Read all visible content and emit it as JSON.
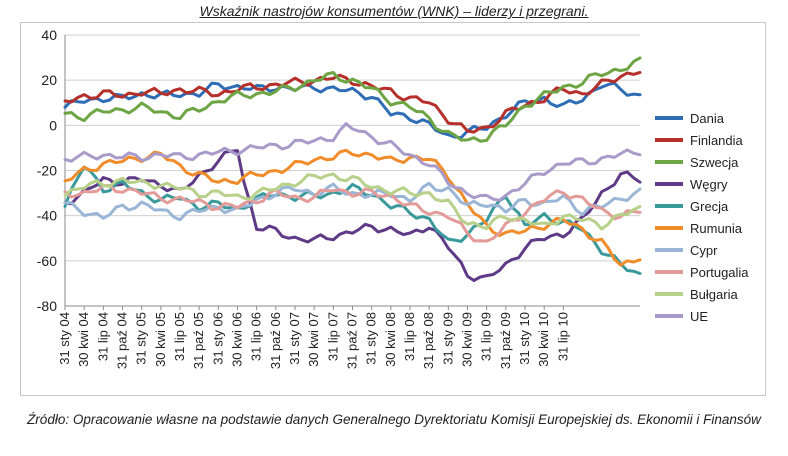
{
  "title": "Wskaźnik nastrojów konsumentów (WNK) – liderzy i przegrani.",
  "source": "Źródło: Opracowanie własne na podstawie danych Generalnego Dyrektoriatu Komisji Europejskiej ds. Ekonomii i Finansów",
  "chart_data": {
    "type": "line",
    "title": "Wskaźnik nastrojów konsumentów (WNK) – liderzy i przegrani.",
    "xlabel": "",
    "ylabel": "",
    "ylim": [
      -80,
      40
    ],
    "yticks": [
      40,
      20,
      0,
      -20,
      -40,
      -60,
      -80
    ],
    "grid": true,
    "legend_position": "right",
    "x_tick_labels": [
      "31 sty 04",
      "30 kwi 04",
      "31 lip 04",
      "31 paź 04",
      "31 sty 05",
      "30 kwi 05",
      "31 lip 05",
      "31 paź 05",
      "31 sty 06",
      "30 kwi 06",
      "31 lip 06",
      "31 paź 06",
      "31 sty 07",
      "30 kwi 07",
      "31 lip 07",
      "31 paź 07",
      "31 sty 08",
      "30 kwi 08",
      "31 lip 08",
      "31 paź 08",
      "31 sty 09",
      "30 kwi 09",
      "31 lip 09",
      "31 paź 09",
      "31 sty 10",
      "30 kwi 10",
      "31 lip 10"
    ],
    "months_per_tick": 3,
    "series": [
      {
        "name": "Dania",
        "color": "#2e6db5",
        "anchors": [
          [
            0,
            8
          ],
          [
            3,
            11
          ],
          [
            6,
            12
          ],
          [
            9,
            12
          ],
          [
            12,
            14
          ],
          [
            15,
            13
          ],
          [
            18,
            14
          ],
          [
            21,
            14
          ],
          [
            24,
            18
          ],
          [
            27,
            17
          ],
          [
            30,
            16
          ],
          [
            33,
            17
          ],
          [
            36,
            16
          ],
          [
            39,
            17
          ],
          [
            42,
            16
          ],
          [
            45,
            15
          ],
          [
            48,
            13
          ],
          [
            51,
            5
          ],
          [
            54,
            4
          ],
          [
            57,
            0
          ],
          [
            60,
            -5
          ],
          [
            63,
            -3
          ],
          [
            66,
            -1
          ],
          [
            69,
            5
          ],
          [
            72,
            10
          ],
          [
            75,
            12
          ],
          [
            78,
            8
          ],
          [
            81,
            12
          ],
          [
            84,
            18
          ],
          [
            87,
            16
          ],
          [
            90,
            13
          ]
        ]
      },
      {
        "name": "Finlandia",
        "color": "#b5302a",
        "anchors": [
          [
            0,
            10
          ],
          [
            3,
            13
          ],
          [
            6,
            14
          ],
          [
            9,
            13
          ],
          [
            12,
            15
          ],
          [
            15,
            14
          ],
          [
            18,
            16
          ],
          [
            21,
            15
          ],
          [
            24,
            14
          ],
          [
            27,
            16
          ],
          [
            30,
            17
          ],
          [
            33,
            18
          ],
          [
            36,
            19
          ],
          [
            39,
            20
          ],
          [
            42,
            21
          ],
          [
            45,
            20
          ],
          [
            48,
            17
          ],
          [
            51,
            15
          ],
          [
            54,
            12
          ],
          [
            57,
            10
          ],
          [
            60,
            3
          ],
          [
            63,
            -3
          ],
          [
            66,
            -1
          ],
          [
            69,
            5
          ],
          [
            72,
            9
          ],
          [
            75,
            12
          ],
          [
            78,
            16
          ],
          [
            81,
            14
          ],
          [
            84,
            18
          ],
          [
            87,
            22
          ],
          [
            90,
            24
          ]
        ]
      },
      {
        "name": "Szwecja",
        "color": "#6ea544",
        "anchors": [
          [
            0,
            5
          ],
          [
            3,
            4
          ],
          [
            6,
            6
          ],
          [
            9,
            7
          ],
          [
            12,
            8
          ],
          [
            15,
            6
          ],
          [
            18,
            4
          ],
          [
            21,
            7
          ],
          [
            24,
            11
          ],
          [
            27,
            13
          ],
          [
            30,
            14
          ],
          [
            33,
            15
          ],
          [
            36,
            17
          ],
          [
            39,
            20
          ],
          [
            42,
            22
          ],
          [
            45,
            20
          ],
          [
            48,
            16
          ],
          [
            51,
            11
          ],
          [
            54,
            8
          ],
          [
            57,
            3
          ],
          [
            60,
            -4
          ],
          [
            63,
            -7
          ],
          [
            66,
            -5
          ],
          [
            69,
            0
          ],
          [
            72,
            9
          ],
          [
            75,
            13
          ],
          [
            78,
            17
          ],
          [
            81,
            19
          ],
          [
            84,
            23
          ],
          [
            87,
            25
          ],
          [
            90,
            28
          ]
        ]
      },
      {
        "name": "Węgry",
        "color": "#5e3a87",
        "anchors": [
          [
            0,
            -34
          ],
          [
            3,
            -30
          ],
          [
            6,
            -24
          ],
          [
            9,
            -25
          ],
          [
            12,
            -24
          ],
          [
            15,
            -26
          ],
          [
            18,
            -30
          ],
          [
            21,
            -22
          ],
          [
            24,
            -16
          ],
          [
            27,
            -10
          ],
          [
            28,
            -25
          ],
          [
            30,
            -45
          ],
          [
            33,
            -47
          ],
          [
            36,
            -50
          ],
          [
            39,
            -51
          ],
          [
            42,
            -49
          ],
          [
            45,
            -47
          ],
          [
            48,
            -45
          ],
          [
            51,
            -46
          ],
          [
            54,
            -49
          ],
          [
            57,
            -44
          ],
          [
            60,
            -54
          ],
          [
            63,
            -66
          ],
          [
            66,
            -68
          ],
          [
            69,
            -62
          ],
          [
            72,
            -54
          ],
          [
            75,
            -50
          ],
          [
            78,
            -48
          ],
          [
            81,
            -42
          ],
          [
            84,
            -30
          ],
          [
            87,
            -22
          ],
          [
            90,
            -24
          ]
        ]
      },
      {
        "name": "Grecja",
        "color": "#3a9a9b",
        "anchors": [
          [
            0,
            -35
          ],
          [
            3,
            -18
          ],
          [
            6,
            -28
          ],
          [
            9,
            -26
          ],
          [
            12,
            -30
          ],
          [
            15,
            -33
          ],
          [
            18,
            -32
          ],
          [
            21,
            -36
          ],
          [
            24,
            -35
          ],
          [
            27,
            -37
          ],
          [
            30,
            -33
          ],
          [
            33,
            -30
          ],
          [
            36,
            -32
          ],
          [
            39,
            -31
          ],
          [
            42,
            -30
          ],
          [
            45,
            -28
          ],
          [
            48,
            -30
          ],
          [
            51,
            -36
          ],
          [
            54,
            -38
          ],
          [
            57,
            -42
          ],
          [
            60,
            -52
          ],
          [
            63,
            -48
          ],
          [
            66,
            -42
          ],
          [
            69,
            -30
          ],
          [
            72,
            -45
          ],
          [
            75,
            -40
          ],
          [
            78,
            -43
          ],
          [
            81,
            -46
          ],
          [
            84,
            -55
          ],
          [
            87,
            -62
          ],
          [
            90,
            -66
          ]
        ]
      },
      {
        "name": "Rumunia",
        "color": "#f08c2a",
        "anchors": [
          [
            0,
            -25
          ],
          [
            3,
            -20
          ],
          [
            6,
            -17
          ],
          [
            9,
            -16
          ],
          [
            12,
            -14
          ],
          [
            15,
            -13
          ],
          [
            18,
            -18
          ],
          [
            21,
            -22
          ],
          [
            24,
            -25
          ],
          [
            27,
            -24
          ],
          [
            30,
            -22
          ],
          [
            33,
            -20
          ],
          [
            36,
            -18
          ],
          [
            39,
            -15
          ],
          [
            42,
            -14
          ],
          [
            45,
            -12
          ],
          [
            48,
            -13
          ],
          [
            51,
            -16
          ],
          [
            54,
            -14
          ],
          [
            57,
            -15
          ],
          [
            60,
            -22
          ],
          [
            63,
            -35
          ],
          [
            66,
            -45
          ],
          [
            69,
            -48
          ],
          [
            72,
            -47
          ],
          [
            75,
            -44
          ],
          [
            78,
            -42
          ],
          [
            81,
            -46
          ],
          [
            84,
            -52
          ],
          [
            87,
            -62
          ],
          [
            90,
            -58
          ]
        ]
      },
      {
        "name": "Cypr",
        "color": "#9ab6d6",
        "anchors": [
          [
            0,
            -35
          ],
          [
            3,
            -38
          ],
          [
            6,
            -41
          ],
          [
            9,
            -36
          ],
          [
            12,
            -35
          ],
          [
            15,
            -38
          ],
          [
            18,
            -40
          ],
          [
            21,
            -38
          ],
          [
            24,
            -36
          ],
          [
            27,
            -38
          ],
          [
            30,
            -33
          ],
          [
            33,
            -30
          ],
          [
            36,
            -28
          ],
          [
            39,
            -30
          ],
          [
            42,
            -28
          ],
          [
            45,
            -30
          ],
          [
            48,
            -31
          ],
          [
            51,
            -30
          ],
          [
            54,
            -33
          ],
          [
            57,
            -27
          ],
          [
            60,
            -28
          ],
          [
            63,
            -36
          ],
          [
            66,
            -34
          ],
          [
            69,
            -38
          ],
          [
            72,
            -33
          ],
          [
            75,
            -35
          ],
          [
            78,
            -32
          ],
          [
            81,
            -38
          ],
          [
            84,
            -36
          ],
          [
            87,
            -32
          ],
          [
            90,
            -30
          ]
        ]
      },
      {
        "name": "Portugalia",
        "color": "#e29b98",
        "anchors": [
          [
            0,
            -30
          ],
          [
            3,
            -30
          ],
          [
            6,
            -28
          ],
          [
            9,
            -28
          ],
          [
            12,
            -30
          ],
          [
            15,
            -32
          ],
          [
            18,
            -33
          ],
          [
            21,
            -34
          ],
          [
            24,
            -36
          ],
          [
            27,
            -36
          ],
          [
            30,
            -33
          ],
          [
            33,
            -30
          ],
          [
            36,
            -32
          ],
          [
            39,
            -32
          ],
          [
            42,
            -28
          ],
          [
            45,
            -30
          ],
          [
            48,
            -30
          ],
          [
            51,
            -31
          ],
          [
            54,
            -36
          ],
          [
            57,
            -38
          ],
          [
            60,
            -40
          ],
          [
            63,
            -48
          ],
          [
            66,
            -52
          ],
          [
            69,
            -45
          ],
          [
            72,
            -38
          ],
          [
            75,
            -33
          ],
          [
            78,
            -29
          ],
          [
            81,
            -33
          ],
          [
            84,
            -38
          ],
          [
            87,
            -40
          ],
          [
            90,
            -38
          ]
        ]
      },
      {
        "name": "Bułgaria",
        "color": "#b8d18a",
        "anchors": [
          [
            0,
            -30
          ],
          [
            3,
            -27
          ],
          [
            6,
            -26
          ],
          [
            9,
            -24
          ],
          [
            12,
            -26
          ],
          [
            15,
            -26
          ],
          [
            18,
            -28
          ],
          [
            21,
            -30
          ],
          [
            24,
            -30
          ],
          [
            27,
            -32
          ],
          [
            30,
            -30
          ],
          [
            33,
            -28
          ],
          [
            36,
            -25
          ],
          [
            39,
            -23
          ],
          [
            42,
            -22
          ],
          [
            45,
            -24
          ],
          [
            48,
            -27
          ],
          [
            51,
            -29
          ],
          [
            54,
            -30
          ],
          [
            57,
            -30
          ],
          [
            60,
            -35
          ],
          [
            63,
            -43
          ],
          [
            66,
            -45
          ],
          [
            69,
            -40
          ],
          [
            72,
            -42
          ],
          [
            75,
            -45
          ],
          [
            78,
            -40
          ],
          [
            81,
            -42
          ],
          [
            84,
            -44
          ],
          [
            87,
            -40
          ],
          [
            90,
            -37
          ]
        ]
      },
      {
        "name": "UE",
        "color": "#a99bc9",
        "anchors": [
          [
            0,
            -15
          ],
          [
            3,
            -14
          ],
          [
            6,
            -13
          ],
          [
            9,
            -14
          ],
          [
            12,
            -14
          ],
          [
            15,
            -13
          ],
          [
            18,
            -14
          ],
          [
            21,
            -13
          ],
          [
            24,
            -12
          ],
          [
            27,
            -11
          ],
          [
            30,
            -10
          ],
          [
            33,
            -9
          ],
          [
            36,
            -8
          ],
          [
            39,
            -7
          ],
          [
            42,
            -5
          ],
          [
            44,
            -1
          ],
          [
            46,
            -2
          ],
          [
            48,
            -5
          ],
          [
            51,
            -9
          ],
          [
            54,
            -13
          ],
          [
            57,
            -17
          ],
          [
            60,
            -25
          ],
          [
            63,
            -30
          ],
          [
            66,
            -33
          ],
          [
            69,
            -31
          ],
          [
            72,
            -26
          ],
          [
            75,
            -20
          ],
          [
            78,
            -17
          ],
          [
            81,
            -16
          ],
          [
            84,
            -15
          ],
          [
            87,
            -13
          ],
          [
            90,
            -11
          ]
        ]
      }
    ]
  }
}
